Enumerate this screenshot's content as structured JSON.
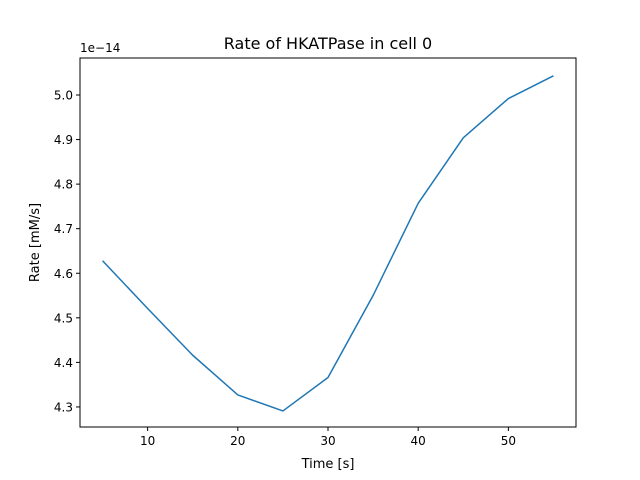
{
  "chart_data": {
    "type": "line",
    "title": "Rate of HKATPase in cell 0",
    "xlabel": "Time [s]",
    "ylabel": "Rate [mM/s]",
    "y_offset_label": "1e−14",
    "xlim": [
      2.5,
      57.5
    ],
    "ylim": [
      4.255,
      5.083
    ],
    "xticks": [
      10,
      20,
      30,
      40,
      50
    ],
    "yticks": [
      4.3,
      4.4,
      4.5,
      4.6,
      4.7,
      4.8,
      4.9,
      5.0
    ],
    "ytick_labels": [
      "4.3",
      "4.4",
      "4.5",
      "4.6",
      "4.7",
      "4.8",
      "4.9",
      "5.0"
    ],
    "grid": false,
    "series": [
      {
        "color": "#1f77b4",
        "x": [
          5,
          10,
          15,
          20,
          25,
          30,
          35,
          40,
          45,
          50,
          55
        ],
        "values": [
          4.628,
          4.521,
          4.416,
          4.327,
          4.291,
          4.366,
          4.55,
          4.757,
          4.904,
          4.992,
          5.043
        ]
      }
    ]
  }
}
